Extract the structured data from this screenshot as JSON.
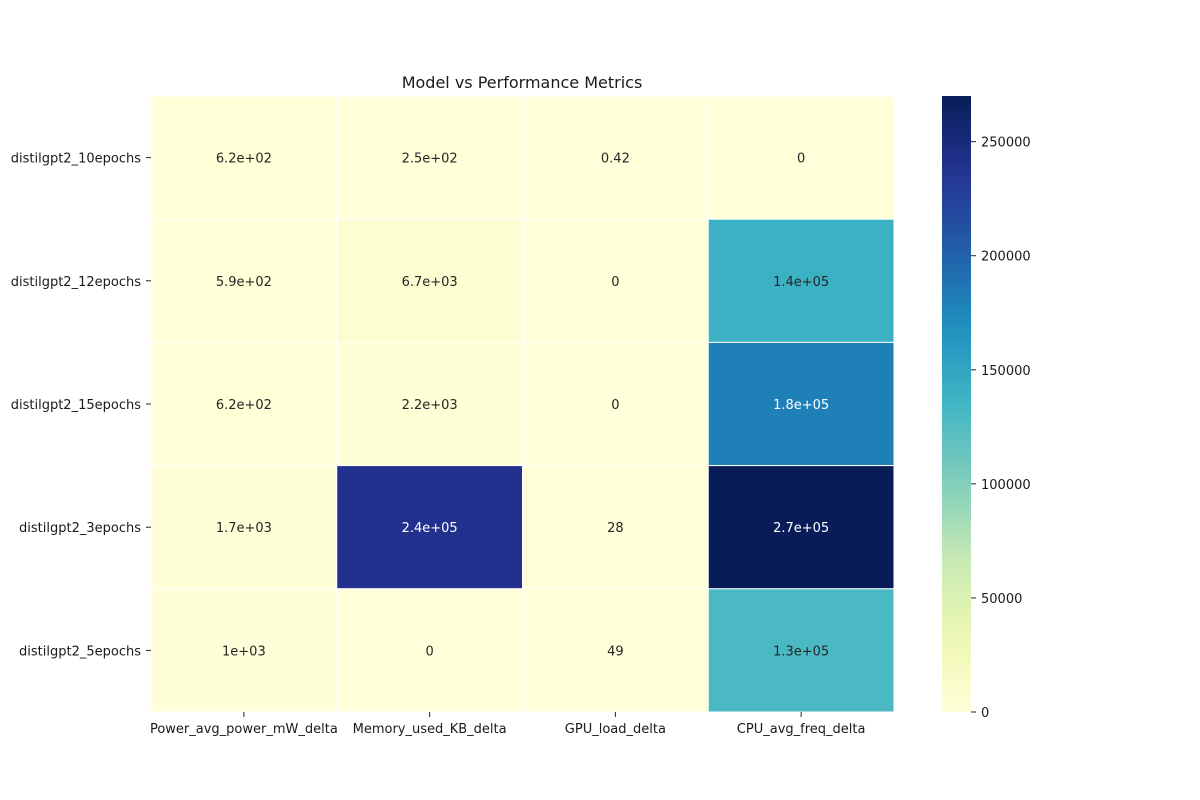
{
  "chart_data": {
    "type": "heatmap",
    "title": "Model vs Performance Metrics",
    "xlabel": "",
    "ylabel": "",
    "rows": [
      "distilgpt2_10epochs",
      "distilgpt2_12epochs",
      "distilgpt2_15epochs",
      "distilgpt2_3epochs",
      "distilgpt2_5epochs"
    ],
    "columns": [
      "Power_avg_power_mW_delta",
      "Memory_used_KB_delta",
      "GPU_load_delta",
      "CPU_avg_freq_delta"
    ],
    "values": [
      [
        620,
        250,
        0.42,
        0
      ],
      [
        590,
        6700,
        0,
        140000
      ],
      [
        620,
        2200,
        0,
        180000
      ],
      [
        1700,
        240000,
        28,
        270000
      ],
      [
        1000,
        0,
        49,
        130000
      ]
    ],
    "annotations": [
      [
        "6.2e+02",
        "2.5e+02",
        "0.42",
        "0"
      ],
      [
        "5.9e+02",
        "6.7e+03",
        "0",
        "1.4e+05"
      ],
      [
        "6.2e+02",
        "2.2e+03",
        "0",
        "1.8e+05"
      ],
      [
        "1.7e+03",
        "2.4e+05",
        "28",
        "2.7e+05"
      ],
      [
        "1e+03",
        "0",
        "49",
        "1.3e+05"
      ]
    ],
    "colormap": "YlGnBu",
    "colorbar": {
      "range": [
        0,
        270000
      ],
      "ticks": [
        0,
        50000,
        100000,
        150000,
        200000,
        250000
      ],
      "tick_labels": [
        "0",
        "50000",
        "100000",
        "150000",
        "200000",
        "250000"
      ]
    },
    "grid": false,
    "legend": "colorbar-right"
  }
}
